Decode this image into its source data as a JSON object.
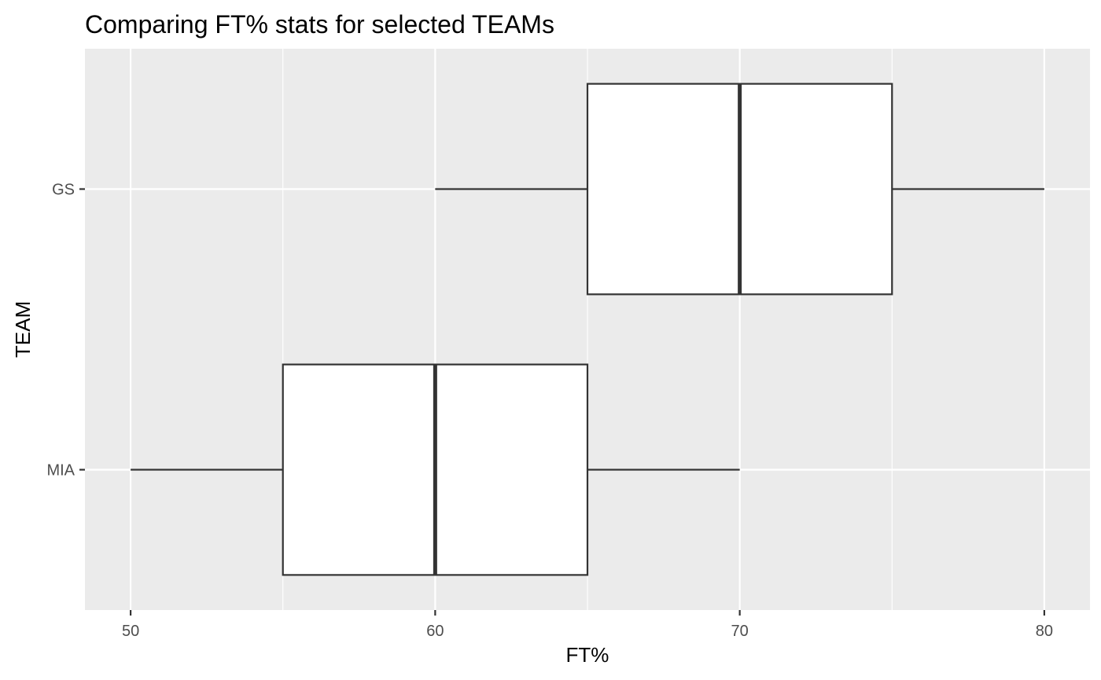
{
  "chart_data": {
    "type": "boxplot",
    "orientation": "horizontal",
    "title": "Comparing FT% stats for selected TEAMs",
    "xlabel": "FT%",
    "ylabel": "TEAM",
    "xlim": [
      48.5,
      81.5
    ],
    "xticks": [
      50,
      60,
      70,
      80
    ],
    "xtick_labels": [
      "50",
      "60",
      "70",
      "80"
    ],
    "grid": true,
    "categories": [
      "GS",
      "MIA"
    ],
    "boxes": [
      {
        "category": "GS",
        "min": 60,
        "q1": 65,
        "median": 70,
        "q3": 75,
        "max": 80
      },
      {
        "category": "MIA",
        "min": 50,
        "q1": 55,
        "median": 60,
        "q3": 65,
        "max": 70
      }
    ],
    "colors": {
      "panel": "#ebebeb",
      "grid": "#ffffff",
      "box_fill": "#ffffff",
      "box_stroke": "#333333"
    }
  }
}
